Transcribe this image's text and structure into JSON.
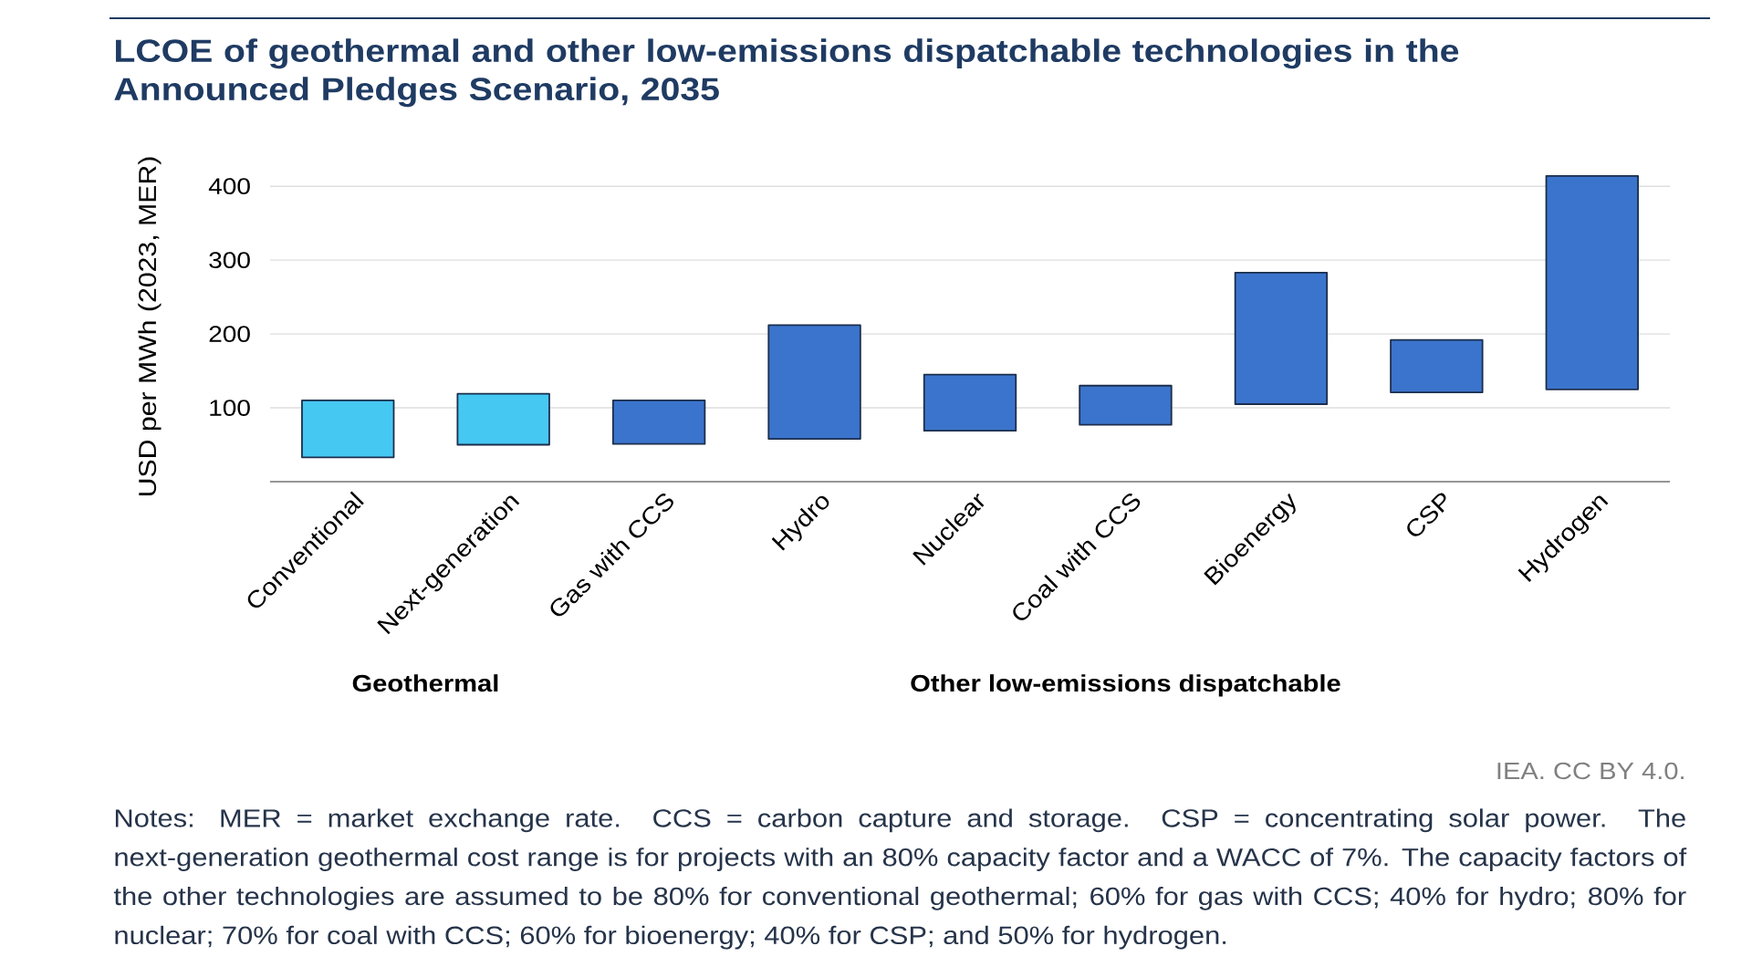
{
  "chart_data": {
    "type": "bar",
    "title": "LCOE of geothermal and other low-emissions dispatchable technologies in the Announced Pledges Scenario, 2035",
    "ylabel": "USD per MWh (2023, MER)",
    "categories": [
      "Conventional",
      "Next-generation",
      "Gas with CCS",
      "Hydro",
      "Nuclear",
      "Coal with CCS",
      "Bioenergy",
      "CSP",
      "Hydrogen"
    ],
    "base": [
      33,
      50,
      51,
      58,
      69,
      77,
      105,
      121,
      125
    ],
    "values": [
      77,
      69,
      59,
      154,
      76,
      53,
      178,
      71,
      289
    ],
    "colors": [
      "#45c8f2",
      "#45c8f2",
      "#3b74cc",
      "#3b74cc",
      "#3b74cc",
      "#3b74cc",
      "#3b74cc",
      "#3b74cc",
      "#3b74cc"
    ],
    "ylim": [
      0,
      420
    ],
    "yticks": [
      100,
      200,
      300,
      400
    ],
    "grid": "y",
    "annotations": [
      "Geothermal",
      "Other low-emissions dispatchable",
      "IEA. CC BY 4.0.",
      "Notes: MER = market exchange rate. CCS = carbon capture and storage. CSP = concentrating solar power. The next-generation geothermal cost range is for projects with an 80% capacity factor and a WACC of 7%. The capacity factors of the other technologies are assumed to be 80% for conventional geothermal; 60% for gas with CCS; 40% for hydro; 80% for nuclear; 70% for coal with CCS; 60% for bioenergy; 40% for CSP; and 50% for hydrogen."
    ]
  }
}
